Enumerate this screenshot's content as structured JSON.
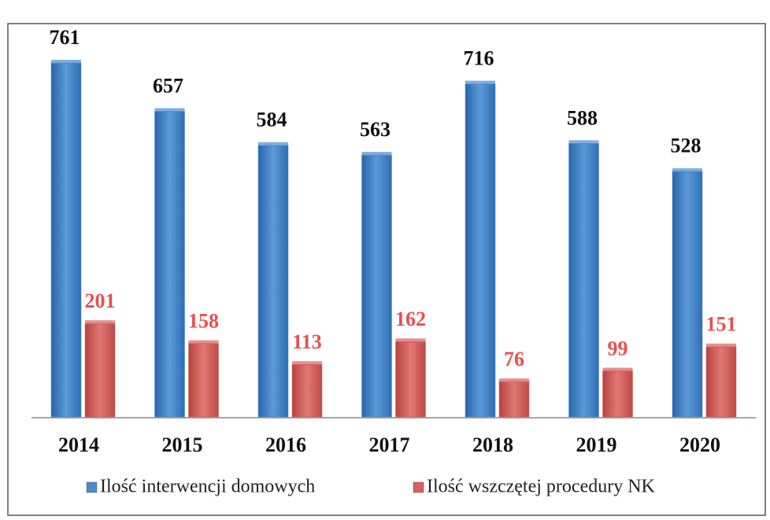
{
  "chart_data": {
    "type": "bar",
    "categories": [
      "2014",
      "2015",
      "2016",
      "2017",
      "2018",
      "2019",
      "2020"
    ],
    "series": [
      {
        "name": "Ilość interwencji domowych",
        "color": "#4a8bd0",
        "values": [
          761,
          657,
          584,
          563,
          716,
          588,
          528
        ]
      },
      {
        "name": "Ilość wszczętej procedury NK",
        "color": "#d9605d",
        "values": [
          201,
          158,
          113,
          162,
          76,
          99,
          151
        ]
      }
    ]
  }
}
